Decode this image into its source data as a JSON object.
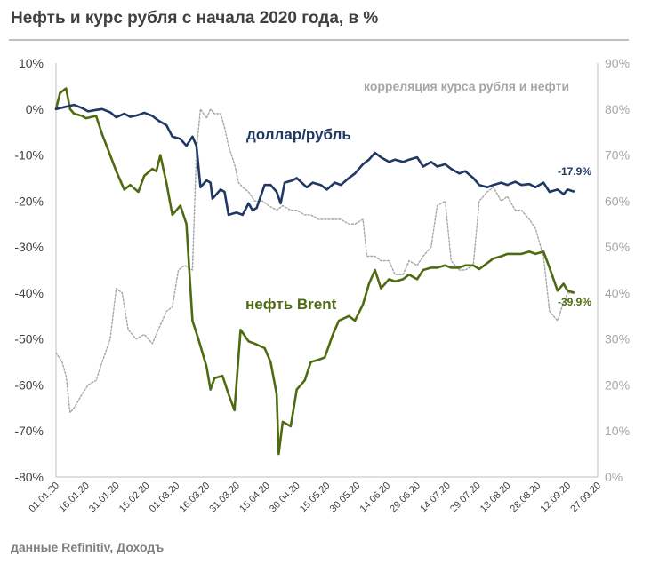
{
  "title": "Нефть и курс рубля с начала 2020 года, в %",
  "source": "данные  Refinitiv, Доходъ",
  "colors": {
    "usdrub": "#1f3864",
    "brent": "#4f6b12",
    "correlation": "#a6a6a6",
    "axis_text": "#404040",
    "right_axis_text": "#a6a6a6"
  },
  "chart_data": {
    "type": "line",
    "x_axis": {
      "type": "date",
      "ticks": [
        "01.01.20",
        "16.01.20",
        "31.01.20",
        "15.02.20",
        "01.03.20",
        "16.03.20",
        "31.03.20",
        "15.04.20",
        "30.04.20",
        "15.05.20",
        "30.05.20",
        "14.06.20",
        "29.06.20",
        "14.07.20",
        "29.07.20",
        "13.08.20",
        "28.08.20",
        "12.09.20",
        "27.09.20"
      ],
      "range": [
        "2020-01-01",
        "2020-09-27"
      ]
    },
    "y_left": {
      "range": [
        -80,
        10
      ],
      "ticks": [
        "10%",
        "0%",
        "-10%",
        "-20%",
        "-30%",
        "-40%",
        "-50%",
        "-60%",
        "-70%",
        "-80%"
      ]
    },
    "y_right": {
      "range": [
        0,
        90
      ],
      "ticks": [
        "90%",
        "80%",
        "70%",
        "60%",
        "50%",
        "40%",
        "30%",
        "20%",
        "10%",
        "0%"
      ]
    },
    "series": [
      {
        "name": "доллар/рубль",
        "axis": "left",
        "style": "solid",
        "end_label": "-17.9%",
        "points": [
          [
            "2020-01-01",
            0
          ],
          [
            "2020-01-06",
            0.5
          ],
          [
            "2020-01-10",
            0.9
          ],
          [
            "2020-01-14",
            0.2
          ],
          [
            "2020-01-17",
            -0.5
          ],
          [
            "2020-01-21",
            -0.2
          ],
          [
            "2020-01-24",
            0
          ],
          [
            "2020-01-28",
            -0.7
          ],
          [
            "2020-01-31",
            -1.8
          ],
          [
            "2020-02-04",
            -1.0
          ],
          [
            "2020-02-07",
            -1.7
          ],
          [
            "2020-02-11",
            -1.3
          ],
          [
            "2020-02-14",
            -0.8
          ],
          [
            "2020-02-18",
            -1.5
          ],
          [
            "2020-02-21",
            -2.5
          ],
          [
            "2020-02-25",
            -3.5
          ],
          [
            "2020-02-28",
            -6.0
          ],
          [
            "2020-03-03",
            -6.5
          ],
          [
            "2020-03-06",
            -8.0
          ],
          [
            "2020-03-09",
            -6.0
          ],
          [
            "2020-03-11",
            -8.0
          ],
          [
            "2020-03-13",
            -17.0
          ],
          [
            "2020-03-16",
            -15.5
          ],
          [
            "2020-03-18",
            -16.0
          ],
          [
            "2020-03-19",
            -19.5
          ],
          [
            "2020-03-23",
            -17.5
          ],
          [
            "2020-03-25",
            -18.0
          ],
          [
            "2020-03-27",
            -23.0
          ],
          [
            "2020-03-31",
            -22.5
          ],
          [
            "2020-04-03",
            -23.0
          ],
          [
            "2020-04-06",
            -20.5
          ],
          [
            "2020-04-08",
            -22.0
          ],
          [
            "2020-04-10",
            -21.5
          ],
          [
            "2020-04-14",
            -16.5
          ],
          [
            "2020-04-17",
            -16.5
          ],
          [
            "2020-04-20",
            -18.0
          ],
          [
            "2020-04-22",
            -20.5
          ],
          [
            "2020-04-24",
            -16.0
          ],
          [
            "2020-04-28",
            -15.5
          ],
          [
            "2020-04-30",
            -15.0
          ],
          [
            "2020-05-05",
            -17.0
          ],
          [
            "2020-05-08",
            -16.0
          ],
          [
            "2020-05-12",
            -16.5
          ],
          [
            "2020-05-15",
            -17.5
          ],
          [
            "2020-05-19",
            -16.0
          ],
          [
            "2020-05-22",
            -16.5
          ],
          [
            "2020-05-26",
            -15.0
          ],
          [
            "2020-05-29",
            -14.0
          ],
          [
            "2020-06-02",
            -12.0
          ],
          [
            "2020-06-05",
            -11.0
          ],
          [
            "2020-06-08",
            -9.5
          ],
          [
            "2020-06-11",
            -10.5
          ],
          [
            "2020-06-15",
            -11.5
          ],
          [
            "2020-06-18",
            -11.0
          ],
          [
            "2020-06-22",
            -11.5
          ],
          [
            "2020-06-25",
            -11.0
          ],
          [
            "2020-06-29",
            -10.5
          ],
          [
            "2020-07-02",
            -12.5
          ],
          [
            "2020-07-06",
            -11.5
          ],
          [
            "2020-07-09",
            -12.5
          ],
          [
            "2020-07-13",
            -12.0
          ],
          [
            "2020-07-16",
            -13.0
          ],
          [
            "2020-07-20",
            -14.0
          ],
          [
            "2020-07-23",
            -13.5
          ],
          [
            "2020-07-27",
            -15.0
          ],
          [
            "2020-07-30",
            -16.5
          ],
          [
            "2020-08-03",
            -17.0
          ],
          [
            "2020-08-06",
            -16.5
          ],
          [
            "2020-08-10",
            -16.0
          ],
          [
            "2020-08-13",
            -16.5
          ],
          [
            "2020-08-17",
            -15.8
          ],
          [
            "2020-08-20",
            -16.5
          ],
          [
            "2020-08-24",
            -16.3
          ],
          [
            "2020-08-27",
            -17.0
          ],
          [
            "2020-08-31",
            -16.0
          ],
          [
            "2020-09-03",
            -18.0
          ],
          [
            "2020-09-07",
            -17.5
          ],
          [
            "2020-09-10",
            -18.5
          ],
          [
            "2020-09-12",
            -17.5
          ],
          [
            "2020-09-15",
            -17.9
          ]
        ]
      },
      {
        "name": "нефть Brent",
        "axis": "left",
        "style": "solid",
        "end_label": "-39.9%",
        "points": [
          [
            "2020-01-01",
            0
          ],
          [
            "2020-01-03",
            3.5
          ],
          [
            "2020-01-06",
            4.5
          ],
          [
            "2020-01-08",
            0
          ],
          [
            "2020-01-10",
            -1.0
          ],
          [
            "2020-01-14",
            -1.5
          ],
          [
            "2020-01-16",
            -2.0
          ],
          [
            "2020-01-21",
            -1.5
          ],
          [
            "2020-01-24",
            -5.5
          ],
          [
            "2020-01-28",
            -10.0
          ],
          [
            "2020-01-31",
            -13.5
          ],
          [
            "2020-02-04",
            -17.5
          ],
          [
            "2020-02-07",
            -16.5
          ],
          [
            "2020-02-11",
            -18.0
          ],
          [
            "2020-02-14",
            -14.5
          ],
          [
            "2020-02-18",
            -13.0
          ],
          [
            "2020-02-20",
            -13.5
          ],
          [
            "2020-02-22",
            -10.0
          ],
          [
            "2020-02-25",
            -16.0
          ],
          [
            "2020-02-28",
            -23.0
          ],
          [
            "2020-03-03",
            -21.0
          ],
          [
            "2020-03-06",
            -25.0
          ],
          [
            "2020-03-09",
            -46.0
          ],
          [
            "2020-03-12",
            -50.0
          ],
          [
            "2020-03-16",
            -56.0
          ],
          [
            "2020-03-18",
            -61.0
          ],
          [
            "2020-03-20",
            -58.5
          ],
          [
            "2020-03-24",
            -58.0
          ],
          [
            "2020-03-27",
            -62.0
          ],
          [
            "2020-03-30",
            -65.5
          ],
          [
            "2020-04-02",
            -48.0
          ],
          [
            "2020-04-06",
            -50.5
          ],
          [
            "2020-04-09",
            -51.0
          ],
          [
            "2020-04-14",
            -52.0
          ],
          [
            "2020-04-17",
            -55.0
          ],
          [
            "2020-04-20",
            -62.0
          ],
          [
            "2020-04-21",
            -75.0
          ],
          [
            "2020-04-23",
            -68.0
          ],
          [
            "2020-04-27",
            -69.0
          ],
          [
            "2020-04-30",
            -61.0
          ],
          [
            "2020-05-04",
            -59.0
          ],
          [
            "2020-05-07",
            -55.0
          ],
          [
            "2020-05-11",
            -54.5
          ],
          [
            "2020-05-14",
            -54.0
          ],
          [
            "2020-05-18",
            -49.0
          ],
          [
            "2020-05-21",
            -46.0
          ],
          [
            "2020-05-26",
            -45.0
          ],
          [
            "2020-05-29",
            -46.0
          ],
          [
            "2020-06-02",
            -42.5
          ],
          [
            "2020-06-05",
            -38.0
          ],
          [
            "2020-06-08",
            -35.0
          ],
          [
            "2020-06-11",
            -39.0
          ],
          [
            "2020-06-15",
            -37.0
          ],
          [
            "2020-06-18",
            -37.5
          ],
          [
            "2020-06-22",
            -37.0
          ],
          [
            "2020-06-25",
            -36.0
          ],
          [
            "2020-06-29",
            -37.0
          ],
          [
            "2020-07-02",
            -35.0
          ],
          [
            "2020-07-06",
            -34.5
          ],
          [
            "2020-07-09",
            -34.5
          ],
          [
            "2020-07-13",
            -34.0
          ],
          [
            "2020-07-16",
            -34.5
          ],
          [
            "2020-07-20",
            -34.5
          ],
          [
            "2020-07-23",
            -34.0
          ],
          [
            "2020-07-27",
            -34.0
          ],
          [
            "2020-07-30",
            -34.8
          ],
          [
            "2020-08-03",
            -33.5
          ],
          [
            "2020-08-06",
            -32.5
          ],
          [
            "2020-08-10",
            -32.0
          ],
          [
            "2020-08-13",
            -31.5
          ],
          [
            "2020-08-17",
            -31.5
          ],
          [
            "2020-08-20",
            -31.5
          ],
          [
            "2020-08-24",
            -31.0
          ],
          [
            "2020-08-27",
            -31.5
          ],
          [
            "2020-08-31",
            -31.0
          ],
          [
            "2020-09-03",
            -34.5
          ],
          [
            "2020-09-07",
            -39.5
          ],
          [
            "2020-09-10",
            -38.0
          ],
          [
            "2020-09-12",
            -39.5
          ],
          [
            "2020-09-15",
            -39.9
          ]
        ]
      },
      {
        "name": "корреляция курса рубля и нефти",
        "axis": "right",
        "style": "dotted",
        "points": [
          [
            "2020-01-01",
            27
          ],
          [
            "2020-01-04",
            25
          ],
          [
            "2020-01-06",
            22
          ],
          [
            "2020-01-08",
            14
          ],
          [
            "2020-01-10",
            15
          ],
          [
            "2020-01-14",
            18
          ],
          [
            "2020-01-17",
            20
          ],
          [
            "2020-01-21",
            21
          ],
          [
            "2020-01-24",
            25
          ],
          [
            "2020-01-28",
            30
          ],
          [
            "2020-01-31",
            41
          ],
          [
            "2020-02-03",
            40
          ],
          [
            "2020-02-06",
            32
          ],
          [
            "2020-02-10",
            30
          ],
          [
            "2020-02-14",
            31
          ],
          [
            "2020-02-18",
            29
          ],
          [
            "2020-02-21",
            32
          ],
          [
            "2020-02-25",
            36
          ],
          [
            "2020-02-28",
            37
          ],
          [
            "2020-03-02",
            45
          ],
          [
            "2020-03-05",
            46
          ],
          [
            "2020-03-09",
            45
          ],
          [
            "2020-03-11",
            71
          ],
          [
            "2020-03-13",
            80
          ],
          [
            "2020-03-16",
            78
          ],
          [
            "2020-03-18",
            80
          ],
          [
            "2020-03-20",
            79
          ],
          [
            "2020-03-23",
            79
          ],
          [
            "2020-03-25",
            76
          ],
          [
            "2020-03-27",
            72
          ],
          [
            "2020-03-30",
            68
          ],
          [
            "2020-04-01",
            64
          ],
          [
            "2020-04-03",
            63
          ],
          [
            "2020-04-06",
            62
          ],
          [
            "2020-04-09",
            60
          ],
          [
            "2020-04-13",
            60
          ],
          [
            "2020-04-16",
            59
          ],
          [
            "2020-04-20",
            58
          ],
          [
            "2020-04-23",
            59
          ],
          [
            "2020-04-27",
            58
          ],
          [
            "2020-04-30",
            58
          ],
          [
            "2020-05-04",
            57
          ],
          [
            "2020-05-07",
            57
          ],
          [
            "2020-05-11",
            56
          ],
          [
            "2020-05-14",
            56
          ],
          [
            "2020-05-18",
            56
          ],
          [
            "2020-05-22",
            56
          ],
          [
            "2020-05-26",
            55
          ],
          [
            "2020-05-29",
            55
          ],
          [
            "2020-06-02",
            56
          ],
          [
            "2020-06-04",
            48
          ],
          [
            "2020-06-08",
            48
          ],
          [
            "2020-06-11",
            47
          ],
          [
            "2020-06-15",
            47
          ],
          [
            "2020-06-18",
            44
          ],
          [
            "2020-06-22",
            44
          ],
          [
            "2020-06-25",
            47
          ],
          [
            "2020-06-29",
            46
          ],
          [
            "2020-07-02",
            48
          ],
          [
            "2020-07-06",
            50
          ],
          [
            "2020-07-09",
            59
          ],
          [
            "2020-07-13",
            60
          ],
          [
            "2020-07-16",
            47
          ],
          [
            "2020-07-20",
            45
          ],
          [
            "2020-07-23",
            45
          ],
          [
            "2020-07-27",
            46
          ],
          [
            "2020-07-30",
            60
          ],
          [
            "2020-08-03",
            62
          ],
          [
            "2020-08-06",
            63
          ],
          [
            "2020-08-10",
            60
          ],
          [
            "2020-08-13",
            61
          ],
          [
            "2020-08-17",
            58
          ],
          [
            "2020-08-20",
            58
          ],
          [
            "2020-08-24",
            56
          ],
          [
            "2020-08-27",
            54
          ],
          [
            "2020-08-31",
            48
          ],
          [
            "2020-09-03",
            36
          ],
          [
            "2020-09-07",
            34
          ],
          [
            "2020-09-10",
            38
          ],
          [
            "2020-09-12",
            40
          ],
          [
            "2020-09-15",
            40
          ]
        ]
      }
    ],
    "annotations": [
      {
        "text": "доллар/рубль",
        "series": "доллар/рубль"
      },
      {
        "text": "нефть Brent",
        "series": "нефть Brent"
      },
      {
        "text": "корреляция курса рубля и нефти",
        "series": "корреляция курса рубля и нефти"
      },
      {
        "text": "-17.9%",
        "series": "доллар/рубль"
      },
      {
        "text": "-39.9%",
        "series": "нефть Brent"
      }
    ],
    "grid": false,
    "legend": "none"
  }
}
